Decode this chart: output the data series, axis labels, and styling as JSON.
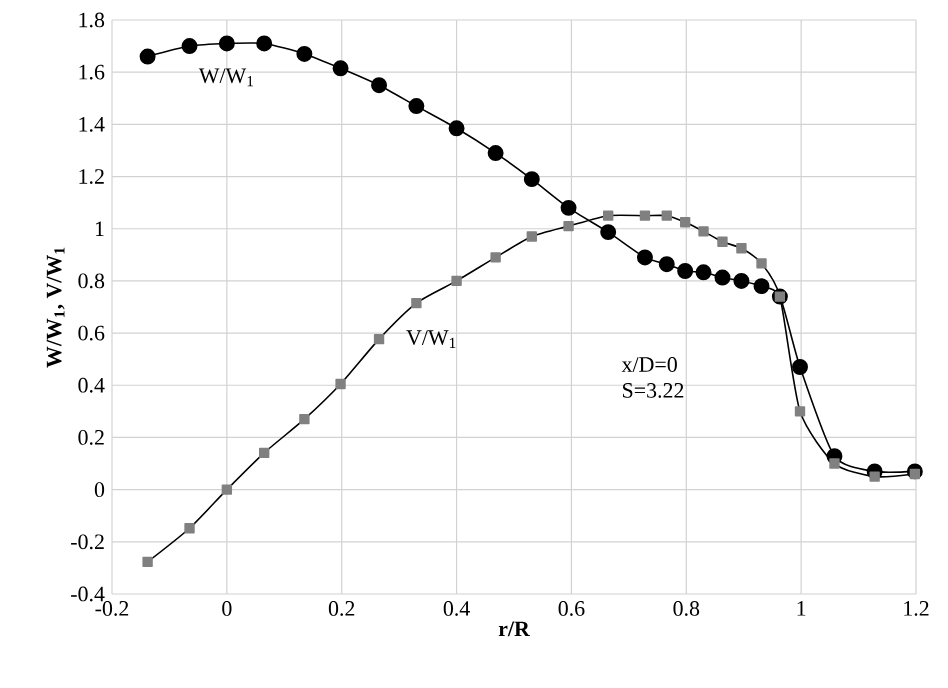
{
  "chart_data": {
    "type": "line",
    "xlabel": "r/R",
    "ylabel": "W/W$_{1}$, V/W$_{1}$",
    "x": [
      -0.138,
      -0.065,
      0.0,
      0.065,
      0.135,
      0.198,
      0.265,
      0.33,
      0.4,
      0.468,
      0.531,
      0.595,
      0.664,
      0.728,
      0.766,
      0.798,
      0.83,
      0.863,
      0.896,
      0.931,
      0.963,
      0.998,
      1.058,
      1.128,
      1.198
    ],
    "series": [
      {
        "name": "W/W$_{1}$",
        "color": "#000000",
        "marker": "circle",
        "values": [
          1.66,
          1.7,
          1.71,
          1.71,
          1.67,
          1.615,
          1.55,
          1.47,
          1.385,
          1.29,
          1.19,
          1.08,
          0.987,
          0.89,
          0.864,
          0.838,
          0.833,
          0.813,
          0.8,
          0.78,
          0.74,
          0.47,
          0.128,
          0.07,
          0.07
        ]
      },
      {
        "name": "V/W$_{1}$",
        "color": "#808080",
        "marker": "square",
        "values": [
          -0.277,
          -0.148,
          0.0,
          0.141,
          0.27,
          0.405,
          0.577,
          0.715,
          0.8,
          0.89,
          0.97,
          1.01,
          1.05,
          1.05,
          1.05,
          1.025,
          0.99,
          0.95,
          0.925,
          0.867,
          0.74,
          0.3,
          0.1,
          0.05,
          0.06
        ]
      }
    ],
    "xlim": [
      -0.2,
      1.2
    ],
    "xticks": [
      -0.2,
      0,
      0.2,
      0.4,
      0.6,
      0.8,
      1,
      1.2
    ],
    "ylim": [
      -0.4,
      1.8
    ],
    "yticks": [
      -0.4,
      -0.2,
      0,
      0.2,
      0.4,
      0.6,
      0.8,
      1,
      1.2,
      1.4,
      1.6,
      1.8
    ],
    "grid": true,
    "line_style": "solid",
    "annotations": [
      "x/D=0",
      "S=3.22"
    ]
  }
}
